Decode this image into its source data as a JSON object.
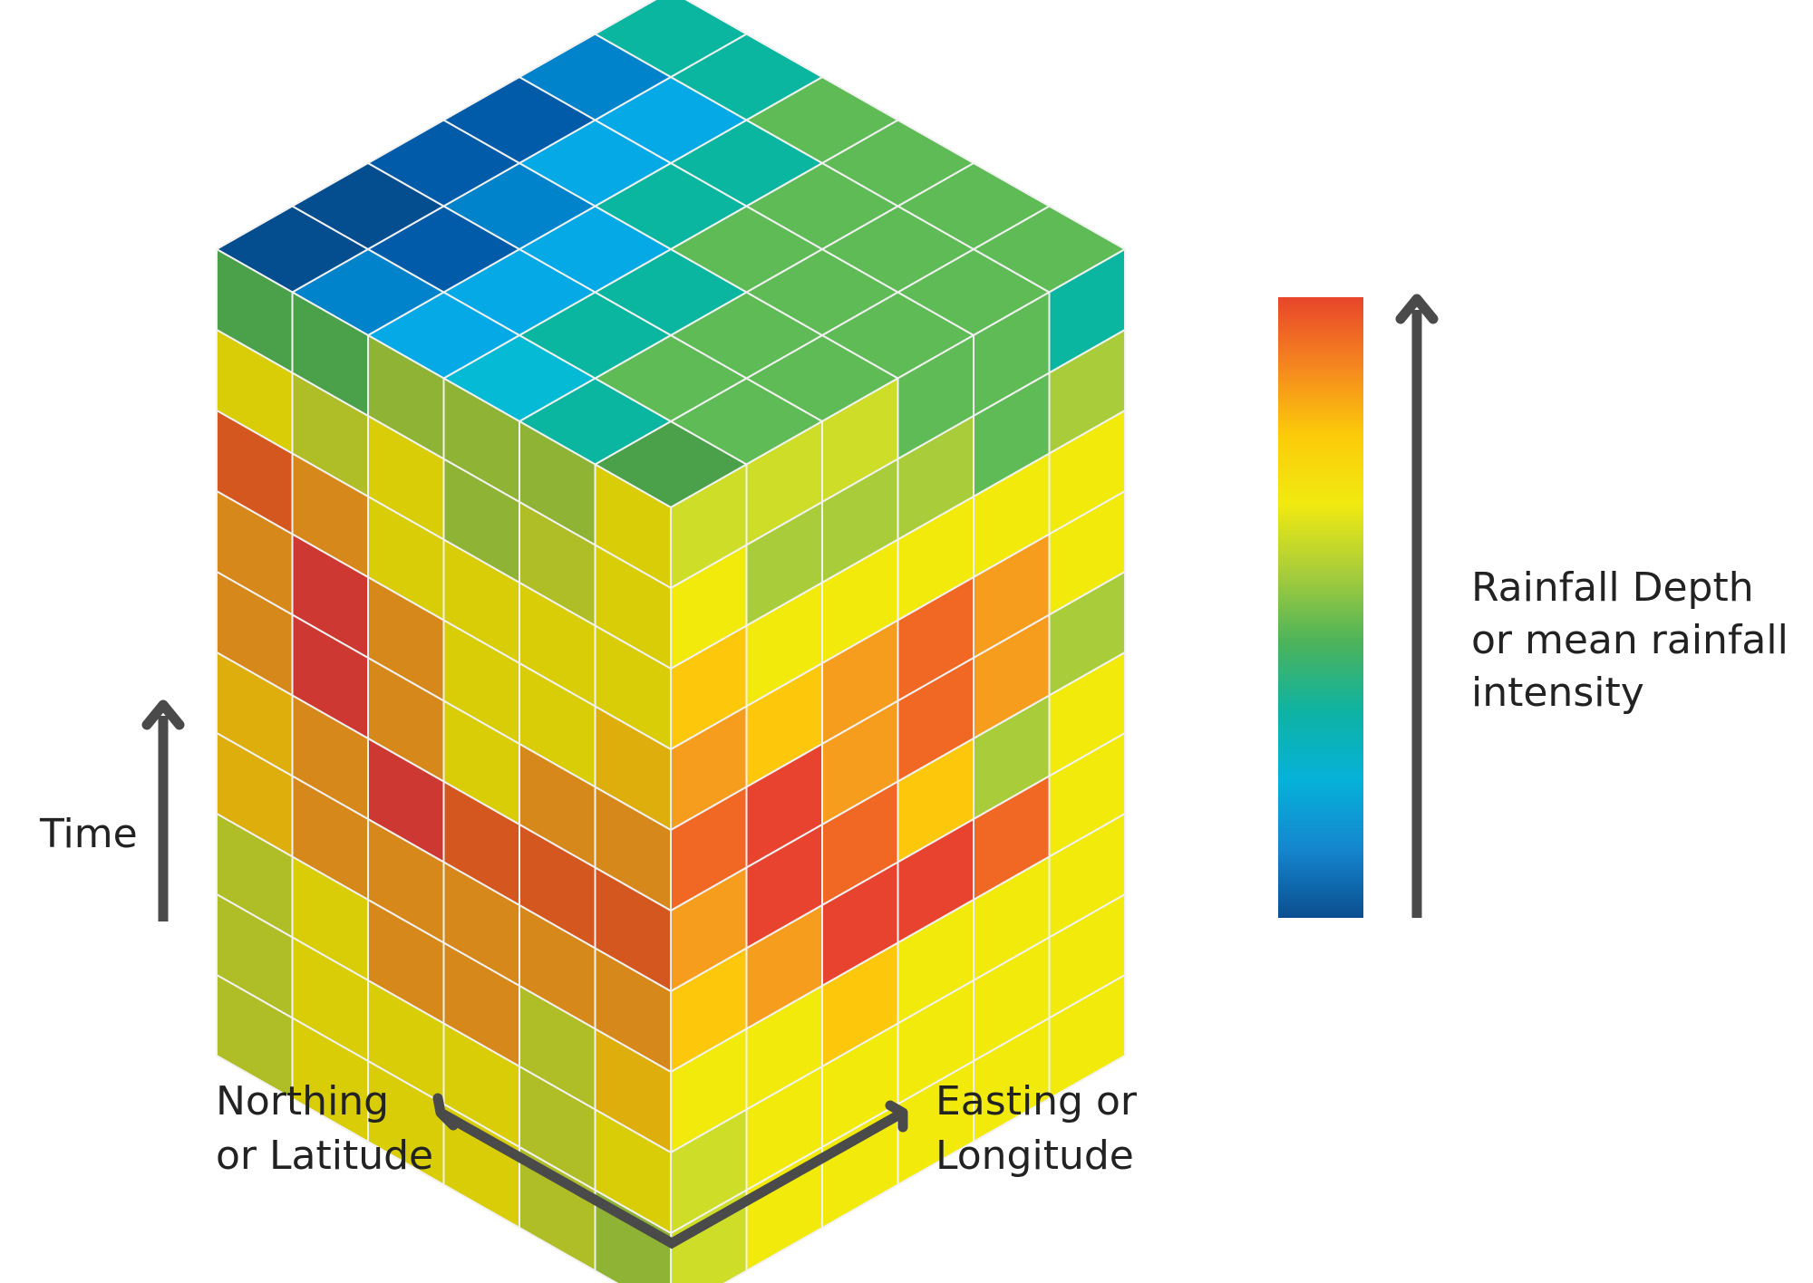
{
  "labels": {
    "time": "Time",
    "northing": [
      "Northing",
      "or Latitude"
    ],
    "easting": [
      "Easting or",
      "Longitude"
    ],
    "colorbar": [
      "Rainfall Depth",
      "or mean rainfall",
      "intensity"
    ]
  },
  "colors": {
    "arrow": "#4a4a4a",
    "grid_line": "#f2f2f2",
    "colorbar_stops": [
      "#e8452b",
      "#f5861f",
      "#fccb0a",
      "#f1ea10",
      "#a8cd3a",
      "#4cb35b",
      "#0eb3a3",
      "#06b2d9",
      "#1486cf",
      "#0b4e8f"
    ]
  },
  "palette": {
    "R": "#e8432f",
    "r": "#cd3833",
    "O": "#f16724",
    "B": "#d3571f",
    "o": "#f79d1e",
    "d": "#d7881a",
    "Y": "#fdc70b",
    "g": "#deae0c",
    "y": "#f2ea0a",
    "m": "#d8cd07",
    "l": "#cddd28",
    "L": "#afbe27",
    "k": "#a9cd3a",
    "K": "#8fb334",
    "G": "#5fbb56",
    "D": "#4aa14a",
    "T": "#0bb6a0",
    "C": "#05bad5",
    "s": "#05a9e6",
    "b": "#0183cb",
    "n": "#025ba9",
    "N": "#044d8f"
  },
  "cube": {
    "top": [
      [
        "D",
        "G",
        "G",
        "G",
        "G",
        "G"
      ],
      [
        "T",
        "G",
        "G",
        "G",
        "G",
        "G"
      ],
      [
        "C",
        "T",
        "T",
        "G",
        "G",
        "G"
      ],
      [
        "s",
        "s",
        "s",
        "T",
        "T",
        "G"
      ],
      [
        "b",
        "n",
        "b",
        "s",
        "s",
        "T"
      ],
      [
        "N",
        "N",
        "n",
        "n",
        "b",
        "T"
      ]
    ],
    "left": [
      [
        "D",
        "D",
        "K",
        "K",
        "K",
        "m"
      ],
      [
        "m",
        "L",
        "m",
        "K",
        "L",
        "m"
      ],
      [
        "B",
        "d",
        "m",
        "m",
        "m",
        "m"
      ],
      [
        "d",
        "r",
        "d",
        "m",
        "m",
        "g"
      ],
      [
        "d",
        "r",
        "d",
        "m",
        "d",
        "d"
      ],
      [
        "g",
        "d",
        "r",
        "B",
        "B",
        "B"
      ],
      [
        "g",
        "d",
        "d",
        "d",
        "d",
        "d"
      ],
      [
        "L",
        "m",
        "d",
        "d",
        "L",
        "g"
      ],
      [
        "L",
        "m",
        "m",
        "m",
        "L",
        "m"
      ],
      [
        "L",
        "m",
        "m",
        "m",
        "L",
        "K"
      ]
    ],
    "right": [
      [
        "l",
        "l",
        "l",
        "G",
        "G",
        "T"
      ],
      [
        "y",
        "k",
        "k",
        "k",
        "G",
        "k"
      ],
      [
        "Y",
        "y",
        "y",
        "y",
        "y",
        "y"
      ],
      [
        "o",
        "Y",
        "o",
        "O",
        "o",
        "y"
      ],
      [
        "O",
        "R",
        "o",
        "O",
        "o",
        "k"
      ],
      [
        "o",
        "R",
        "O",
        "Y",
        "k",
        "y"
      ],
      [
        "Y",
        "o",
        "R",
        "R",
        "O",
        "y"
      ],
      [
        "y",
        "y",
        "Y",
        "y",
        "y",
        "y"
      ],
      [
        "l",
        "y",
        "y",
        "y",
        "y",
        "y"
      ],
      [
        "l",
        "y",
        "y",
        "y",
        "y",
        "y"
      ]
    ]
  }
}
